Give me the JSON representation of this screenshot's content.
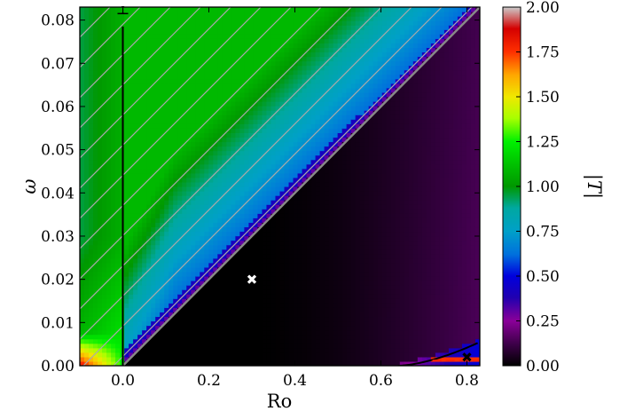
{
  "chart_data": {
    "type": "heatmap",
    "title": "",
    "xlabel": "Ro",
    "ylabel": "ω",
    "colorbar_label": "|T|",
    "xlim": [
      -0.1,
      0.83
    ],
    "ylim": [
      0,
      0.083
    ],
    "x_ticks": [
      "0.0",
      "0.2",
      "0.4",
      "0.6",
      "0.8"
    ],
    "x_tick_values": [
      0.0,
      0.2,
      0.4,
      0.6,
      0.8
    ],
    "y_ticks": [
      "0.00",
      "0.01",
      "0.02",
      "0.03",
      "0.04",
      "0.05",
      "0.06",
      "0.07",
      "0.08"
    ],
    "y_tick_values": [
      0.0,
      0.01,
      0.02,
      0.03,
      0.04,
      0.05,
      0.06,
      0.07,
      0.08
    ],
    "colorbar_ticks": [
      "0.00",
      "0.25",
      "0.50",
      "0.75",
      "1.00",
      "1.25",
      "1.50",
      "1.75",
      "2.00"
    ],
    "colorbar_tick_values": [
      0.0,
      0.25,
      0.5,
      0.75,
      1.0,
      1.25,
      1.5,
      1.75,
      2.0
    ],
    "clim": [
      0,
      2
    ],
    "colormap": "nipy_spectral",
    "grid": false,
    "hatched_region": "ω > Ro/10 (above diagonal)",
    "diagonal_line": {
      "from": [
        0,
        0
      ],
      "to": [
        0.83,
        0.083
      ]
    },
    "vertical_line_x": 0.0,
    "markers": [
      {
        "x": 0.3,
        "y": 0.02,
        "color": "#ffffff",
        "symbol": "x"
      },
      {
        "x": 0.8,
        "y": 0.002,
        "color": "#000000",
        "symbol": "x"
      }
    ],
    "annotations": [
      {
        "label": "I",
        "x": 0.0,
        "y": 0.0815
      }
    ]
  }
}
